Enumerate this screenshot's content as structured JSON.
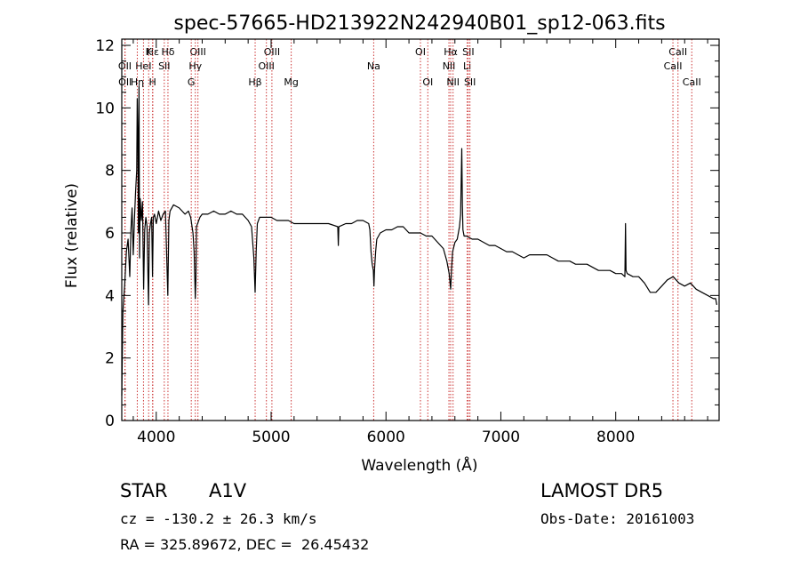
{
  "chart_data": {
    "type": "line",
    "title": "spec-57665-HD213922N242940B01_sp12-063.fits",
    "xlabel": "Wavelength (Å)",
    "ylabel": "Flux (relative)",
    "xlim": [
      3700,
      8900
    ],
    "ylim": [
      0,
      12.2
    ],
    "xticks": [
      4000,
      5000,
      6000,
      7000,
      8000
    ],
    "yticks": [
      0,
      2,
      4,
      6,
      8,
      10,
      12
    ],
    "grid": false,
    "series": [
      {
        "x": [
          3700,
          3710,
          3725,
          3740,
          3755,
          3770,
          3780,
          3790,
          3800,
          3810,
          3820,
          3830,
          3835,
          3840,
          3845,
          3850,
          3855,
          3860,
          3870,
          3880,
          3890,
          3900,
          3910,
          3920,
          3933,
          3940,
          3950,
          3960,
          3968,
          3975,
          3985,
          4000,
          4020,
          4040,
          4060,
          4080,
          4101,
          4110,
          4120,
          4150,
          4200,
          4250,
          4280,
          4300,
          4320,
          4330,
          4340,
          4345,
          4350,
          4360,
          4380,
          4400,
          4450,
          4500,
          4550,
          4600,
          4650,
          4700,
          4750,
          4800,
          4830,
          4850,
          4861,
          4870,
          4880,
          4900,
          4950,
          5000,
          5050,
          5100,
          5150,
          5200,
          5250,
          5300,
          5400,
          5500,
          5580,
          5585,
          5590,
          5650,
          5700,
          5750,
          5800,
          5850,
          5860,
          5870,
          5880,
          5890,
          5895,
          5900,
          5910,
          5920,
          5950,
          6000,
          6050,
          6100,
          6150,
          6200,
          6250,
          6300,
          6350,
          6400,
          6450,
          6500,
          6530,
          6550,
          6563,
          6570,
          6580,
          6600,
          6620,
          6640,
          6650,
          6660,
          6665,
          6670,
          6680,
          6700,
          6750,
          6800,
          6850,
          6900,
          6950,
          7000,
          7050,
          7100,
          7150,
          7200,
          7250,
          7300,
          7350,
          7400,
          7450,
          7500,
          7550,
          7600,
          7650,
          7700,
          7750,
          7800,
          7850,
          7900,
          7950,
          8000,
          8050,
          8080,
          8085,
          8090,
          8100,
          8150,
          8200,
          8250,
          8300,
          8350,
          8400,
          8450,
          8500,
          8550,
          8600,
          8650,
          8700,
          8750,
          8800,
          8850,
          8870,
          8880
        ],
        "y": [
          0.8,
          3.5,
          4.3,
          5.4,
          5.8,
          4.6,
          6.1,
          6.8,
          5.3,
          6.4,
          7.3,
          8.0,
          10.3,
          9.2,
          6.0,
          10.7,
          5.2,
          7.1,
          6.4,
          7.0,
          4.2,
          6.1,
          6.5,
          6.2,
          3.7,
          6.0,
          6.3,
          6.5,
          4.6,
          6.5,
          6.6,
          6.3,
          6.7,
          6.4,
          6.6,
          6.7,
          4.0,
          6.4,
          6.7,
          6.9,
          6.8,
          6.6,
          6.7,
          6.5,
          6.0,
          5.4,
          3.9,
          4.5,
          6.2,
          6.3,
          6.5,
          6.6,
          6.6,
          6.7,
          6.6,
          6.6,
          6.7,
          6.6,
          6.6,
          6.4,
          6.2,
          5.2,
          4.1,
          5.4,
          6.3,
          6.5,
          6.5,
          6.5,
          6.4,
          6.4,
          6.4,
          6.3,
          6.3,
          6.3,
          6.3,
          6.3,
          6.2,
          5.6,
          6.2,
          6.3,
          6.3,
          6.4,
          6.4,
          6.3,
          6.1,
          5.4,
          5.0,
          4.8,
          4.3,
          4.8,
          5.4,
          5.8,
          6.0,
          6.1,
          6.1,
          6.2,
          6.2,
          6.0,
          6.0,
          6.0,
          5.9,
          5.9,
          5.7,
          5.5,
          5.1,
          4.7,
          4.2,
          4.8,
          5.4,
          5.7,
          5.8,
          6.2,
          6.6,
          8.7,
          6.9,
          6.1,
          5.9,
          5.9,
          5.8,
          5.8,
          5.7,
          5.6,
          5.6,
          5.5,
          5.4,
          5.4,
          5.3,
          5.2,
          5.3,
          5.3,
          5.3,
          5.3,
          5.2,
          5.1,
          5.1,
          5.1,
          5.0,
          5.0,
          5.0,
          4.9,
          4.8,
          4.8,
          4.8,
          4.7,
          4.7,
          4.6,
          6.3,
          4.8,
          4.7,
          4.6,
          4.6,
          4.4,
          4.1,
          4.1,
          4.3,
          4.5,
          4.6,
          4.4,
          4.3,
          4.4,
          4.2,
          4.1,
          4.0,
          3.9,
          3.9,
          3.7
        ]
      }
    ],
    "lines": [
      {
        "label": "Hε",
        "x": 3970,
        "row": 0
      },
      {
        "label": "OII",
        "x": 3727,
        "row": 1
      },
      {
        "label": "OII",
        "x": 3729,
        "row": 2
      },
      {
        "label": "K",
        "x": 3934,
        "row": 0
      },
      {
        "label": "HeI",
        "x": 3889,
        "row": 1
      },
      {
        "label": "Hη",
        "x": 3835,
        "row": 2
      },
      {
        "label": "Hδ",
        "x": 4102,
        "row": 0
      },
      {
        "label": "SII",
        "x": 4070,
        "row": 1
      },
      {
        "label": "H",
        "x": 3968,
        "row": 2
      },
      {
        "label": "OIII",
        "x": 4363,
        "row": 0
      },
      {
        "label": "Hγ",
        "x": 4340,
        "row": 1
      },
      {
        "label": "G",
        "x": 4305,
        "row": 2
      },
      {
        "label": "OIII",
        "x": 5007,
        "row": 0
      },
      {
        "label": "OIII",
        "x": 4959,
        "row": 1
      },
      {
        "label": "Hβ",
        "x": 4861,
        "row": 2
      },
      {
        "label": "Mg",
        "x": 5175,
        "row": 2
      },
      {
        "label": "Na",
        "x": 5893,
        "row": 1
      },
      {
        "label": "OI",
        "x": 6300,
        "row": 0
      },
      {
        "label": "OI",
        "x": 6364,
        "row": 2
      },
      {
        "label": "Hα",
        "x": 6563,
        "row": 0
      },
      {
        "label": "NII",
        "x": 6548,
        "row": 1
      },
      {
        "label": "NII",
        "x": 6584,
        "row": 2
      },
      {
        "label": "SII",
        "x": 6717,
        "row": 0
      },
      {
        "label": "Li",
        "x": 6707,
        "row": 1
      },
      {
        "label": "SII",
        "x": 6731,
        "row": 2
      },
      {
        "label": "CaII",
        "x": 8542,
        "row": 0
      },
      {
        "label": "CaII",
        "x": 8498,
        "row": 1
      },
      {
        "label": "CaII",
        "x": 8662,
        "row": 2
      }
    ],
    "colors": {
      "spectrum": "#000000",
      "lines": "#cc3333",
      "axes": "#000000"
    }
  },
  "info": {
    "object_class": "STAR",
    "subclass": "A1V",
    "survey": "LAMOST DR5",
    "cz": "cz = -130.2 ± 26.3 km/s",
    "obs_date": "Obs-Date: 20161003",
    "coords": "RA = 325.89672, DEC =  26.45432"
  }
}
